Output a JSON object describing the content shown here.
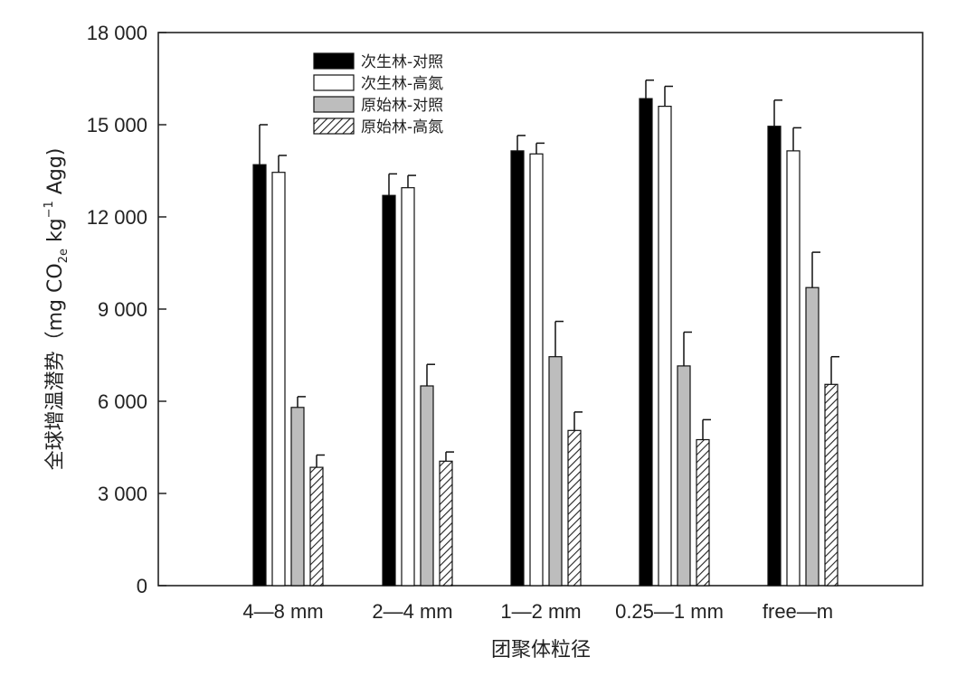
{
  "chart_data": {
    "type": "bar",
    "title": "",
    "xlabel": "团聚体粒径",
    "ylabel": "全球增温潜势（mg CO₂e kg⁻¹ Agg)",
    "ylabel_parts": {
      "main": "全球增温潜势（mg CO",
      "sub": "2e",
      "mid": " kg",
      "sup": "−1",
      "end": " Agg)"
    },
    "ylim": [
      0,
      18000
    ],
    "yticks": [
      0,
      3000,
      6000,
      9000,
      12000,
      15000,
      18000
    ],
    "ytick_labels": [
      "0",
      "3 000",
      "6 000",
      "9 000",
      "12 000",
      "15 000",
      "18 000"
    ],
    "categories": [
      "4—8 mm",
      "2—4 mm",
      "1—2 mm",
      "0.25—1 mm",
      "free—m"
    ],
    "grid": false,
    "legend_position": "top-left",
    "series": [
      {
        "name": "次生林-对照",
        "fill": "black",
        "values": [
          13700,
          12700,
          14150,
          15850,
          14950
        ],
        "errors": [
          1300,
          700,
          500,
          600,
          850
        ]
      },
      {
        "name": "次生林-高氮",
        "fill": "white",
        "values": [
          13450,
          12950,
          14050,
          15600,
          14150
        ],
        "errors": [
          550,
          400,
          350,
          650,
          750
        ]
      },
      {
        "name": "原始林-对照",
        "fill": "gray",
        "values": [
          5800,
          6500,
          7450,
          7150,
          9700
        ],
        "errors": [
          350,
          700,
          1150,
          1100,
          1150
        ]
      },
      {
        "name": "原始林-高氮",
        "fill": "hatch",
        "values": [
          3850,
          4050,
          5050,
          4750,
          6550
        ],
        "errors": [
          400,
          300,
          600,
          650,
          900
        ]
      }
    ]
  },
  "colors": {
    "black": "#000000",
    "white": "#ffffff",
    "gray": "#bdbdbd",
    "hatch_line": "#222222",
    "axis": "#222222"
  }
}
